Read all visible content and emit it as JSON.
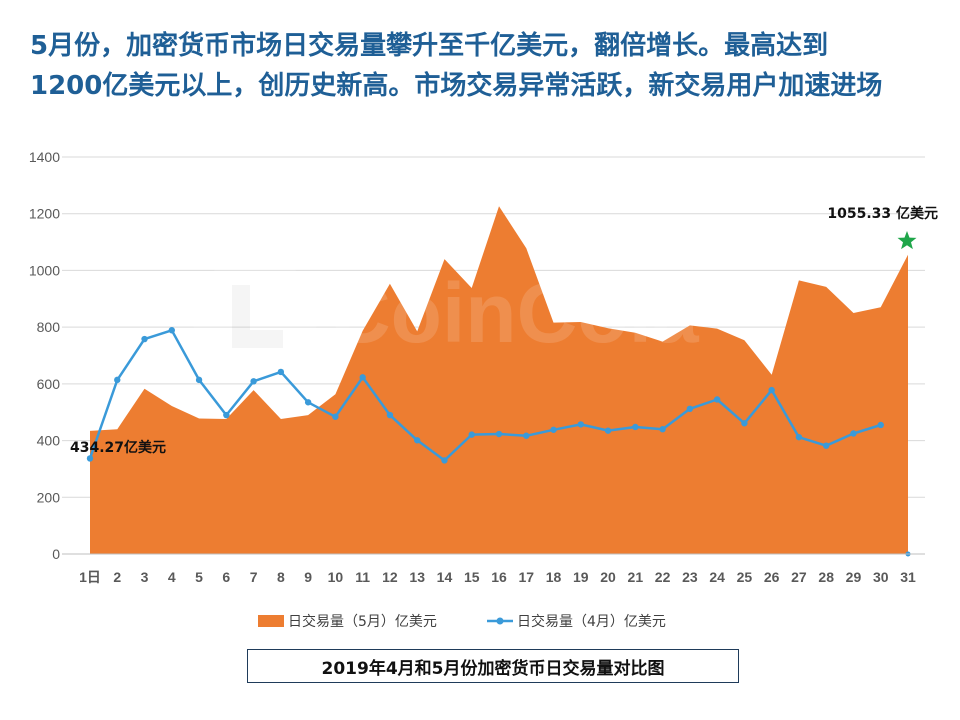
{
  "headline": {
    "line1": "5月份，加密货币市场日交易量攀升至千亿美元，翻倍增长。最高达到",
    "line2": "1200亿美元以上，创历史新高。市场交易异常活跃，新交易用户加速进场"
  },
  "watermark": "CoinCola",
  "caption": "2019年4月和5月份加密货币日交易量对比图",
  "colors": {
    "may_area": "#ed7d31",
    "april_line": "#3a9ad9",
    "headline": "#1f5f96",
    "star": "#1fa64a",
    "gridline": "#d9d9d9"
  },
  "chart_data": {
    "type": "area",
    "categories": [
      "1日",
      "2",
      "3",
      "4",
      "5",
      "6",
      "7",
      "8",
      "9",
      "10",
      "11",
      "12",
      "13",
      "14",
      "15",
      "16",
      "17",
      "18",
      "19",
      "20",
      "21",
      "22",
      "23",
      "24",
      "25",
      "26",
      "27",
      "28",
      "29",
      "30",
      "31"
    ],
    "ylim": [
      0,
      1400
    ],
    "yticks": [
      "0",
      "200",
      "400",
      "600",
      "800",
      "1000",
      "1200",
      "1400"
    ],
    "grid": true,
    "legend_position": "bottom",
    "series": [
      {
        "name": "日交易量（5月）亿美元",
        "type": "area",
        "values": [
          434.27,
          440,
          583,
          522,
          478,
          476,
          578,
          476,
          490,
          563,
          787,
          953,
          785,
          1040,
          938,
          1226,
          1078,
          816,
          818,
          796,
          780,
          749,
          806,
          795,
          754,
          632,
          965,
          942,
          850,
          870,
          1055.33
        ]
      },
      {
        "name": "日交易量（4月）亿美元",
        "type": "line",
        "values": [
          337,
          614,
          758,
          789,
          614,
          490,
          609,
          642,
          535,
          484,
          623,
          490,
          401,
          330,
          421,
          423,
          417,
          438,
          457,
          435,
          448,
          440,
          512,
          545,
          461,
          578,
          412,
          382,
          425,
          455,
          null
        ]
      }
    ],
    "annotations": [
      {
        "text": "434.27亿美元",
        "category": "1日",
        "value": 434.27
      },
      {
        "text": "1055.33 亿美元",
        "category": "31",
        "value": 1055.33
      }
    ]
  }
}
